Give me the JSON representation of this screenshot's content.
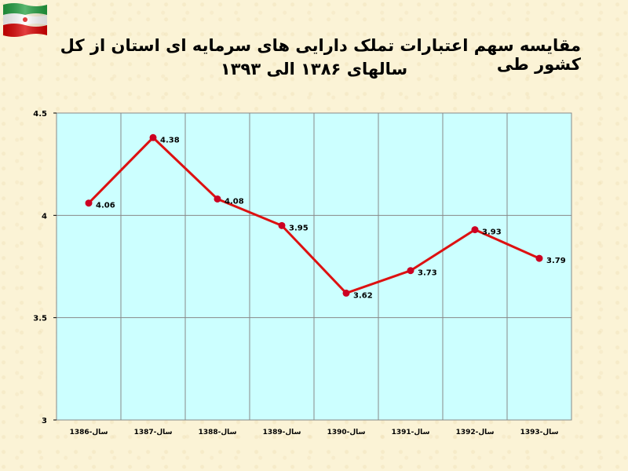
{
  "header": {
    "title_line1": "مقایسه سهم اعتبارات تملک دارایی های سرمایه ای استان از کل کشور طی",
    "title_line2": "سالهای ۱۳۸۶ الی ۱۳۹۳"
  },
  "flag": {
    "colors": [
      "#239f40",
      "#ffffff",
      "#da0000"
    ],
    "icon": "iran-flag-icon"
  },
  "colors": {
    "plot_bg": "#ccffff",
    "line": "#dd1111",
    "marker": "#cc0022",
    "grid": "#888888"
  },
  "chart_data": {
    "type": "line",
    "categories": [
      "سال-1386",
      "سال-1387",
      "سال-1388",
      "سال-1389",
      "سال-1390",
      "سال-1391",
      "سال-1392",
      "سال-1393"
    ],
    "values": [
      4.06,
      4.38,
      4.08,
      3.95,
      3.62,
      3.73,
      3.93,
      3.79
    ],
    "data_labels": [
      "4.06",
      "4.38",
      "4.08",
      "3.95",
      "3.62",
      "3.73",
      "3.93",
      "3.79"
    ],
    "ylim": [
      3,
      4.5
    ],
    "yticks": [
      3,
      3.5,
      4,
      4.5
    ],
    "ytick_labels": [
      "3",
      "3.5",
      "4",
      "4.5"
    ],
    "grid": true,
    "legend": "none"
  }
}
